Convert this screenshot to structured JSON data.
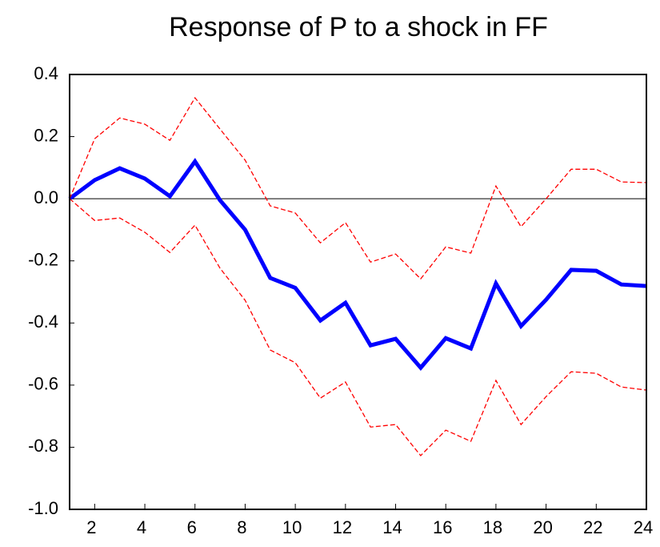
{
  "chart_data": {
    "type": "line",
    "title": "Response of P to a shock in FF",
    "x": [
      1,
      2,
      3,
      4,
      5,
      6,
      7,
      8,
      9,
      10,
      11,
      12,
      13,
      14,
      15,
      16,
      17,
      18,
      19,
      20,
      21,
      22,
      23,
      24
    ],
    "series": [
      {
        "color": "#0000ff",
        "dashed": false,
        "values": [
          0.0,
          0.06,
          0.098,
          0.065,
          0.008,
          0.12,
          -0.005,
          -0.1,
          -0.255,
          -0.287,
          -0.392,
          -0.335,
          -0.472,
          -0.451,
          -0.544,
          -0.449,
          -0.482,
          -0.273,
          -0.41,
          -0.325,
          -0.229,
          -0.232,
          -0.276,
          -0.281
        ]
      },
      {
        "color": "#ff0000",
        "dashed": true,
        "values": [
          0.0,
          0.193,
          0.26,
          0.24,
          0.188,
          0.325,
          0.224,
          0.124,
          -0.023,
          -0.046,
          -0.142,
          -0.077,
          -0.204,
          -0.178,
          -0.258,
          -0.155,
          -0.175,
          0.041,
          -0.09,
          0.0,
          0.095,
          0.095,
          0.054,
          0.052
        ]
      },
      {
        "color": "#ff0000",
        "dashed": true,
        "values": [
          0.0,
          -0.07,
          -0.062,
          -0.108,
          -0.173,
          -0.085,
          -0.224,
          -0.327,
          -0.487,
          -0.528,
          -0.642,
          -0.59,
          -0.735,
          -0.727,
          -0.827,
          -0.745,
          -0.781,
          -0.585,
          -0.727,
          -0.637,
          -0.557,
          -0.562,
          -0.606,
          -0.616
        ]
      }
    ],
    "xlim": [
      1,
      24
    ],
    "xticks": [
      2,
      4,
      6,
      8,
      10,
      12,
      14,
      16,
      18,
      20,
      22,
      24
    ],
    "ylim": [
      -1.0,
      0.4
    ],
    "yticks": [
      0.4,
      0.2,
      {
        "value": 0,
        "label": "0.0"
      },
      -0.2,
      -0.4,
      -0.6,
      -0.8,
      {
        "value": -1,
        "label": "-1.0"
      }
    ],
    "zero_line": true
  }
}
